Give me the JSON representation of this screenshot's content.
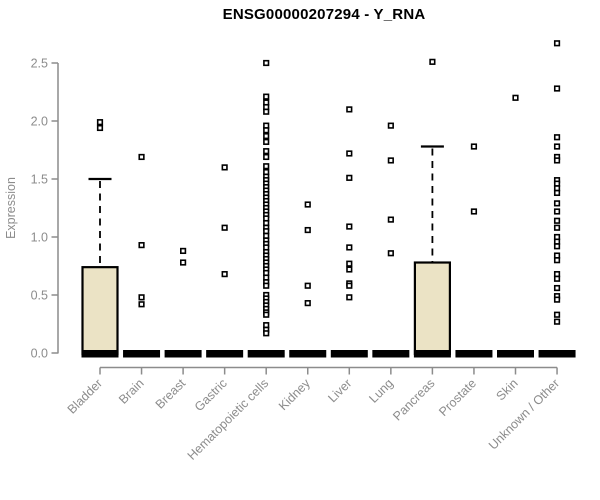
{
  "title": "ENSG00000207294 - Y_RNA",
  "colors": {
    "background": "#ffffff",
    "box_fill": "#ebe3c5",
    "box_stroke": "#000000",
    "point_stroke": "#000000",
    "point_fill": "#ffffff",
    "median_bar": "#000000",
    "axis": "#8c8c8c",
    "tick_label": "#8c8c8c",
    "title_color": "#000000"
  },
  "chart_data": {
    "type": "boxplot-scatter",
    "title": "ENSG00000207294 - Y_RNA",
    "ylabel": "Expression",
    "xlabel": "",
    "yticks": [
      "0.0",
      "0.5",
      "1.0",
      "1.5",
      "2.0",
      "2.5"
    ],
    "ytick_values": [
      0,
      0.5,
      1.0,
      1.5,
      2.0,
      2.5
    ],
    "ylim": [
      0,
      2.7
    ],
    "grid": "off",
    "legend": "none",
    "categories": [
      "Bladder",
      "Brain",
      "Breast",
      "Gastric",
      "Hematopoietic cells",
      "Kidney",
      "Liver",
      "Lung",
      "Pancreas",
      "Prostate",
      "Skin",
      "Unknown / Other"
    ],
    "series": [
      {
        "category": "Bladder",
        "box": {
          "median": 0,
          "q1": 0,
          "q3": 0.74,
          "whisker_low": 0,
          "whisker_high": 1.5
        },
        "points": [
          1.99,
          1.94
        ]
      },
      {
        "category": "Brain",
        "box": {
          "median": 0,
          "q1": 0,
          "q3": 0,
          "whisker_low": 0,
          "whisker_high": 0
        },
        "points": [
          1.69,
          0.93,
          0.48,
          0.42
        ]
      },
      {
        "category": "Breast",
        "box": {
          "median": 0,
          "q1": 0,
          "q3": 0,
          "whisker_low": 0,
          "whisker_high": 0
        },
        "points": [
          0.88,
          0.78
        ]
      },
      {
        "category": "Gastric",
        "box": {
          "median": 0,
          "q1": 0,
          "q3": 0,
          "whisker_low": 0,
          "whisker_high": 0
        },
        "points": [
          1.6,
          1.08,
          0.68
        ]
      },
      {
        "category": "Hematopoietic cells",
        "box": {
          "median": 0,
          "q1": 0,
          "q3": 0,
          "whisker_low": 0,
          "whisker_high": 0
        },
        "points": [
          2.5,
          2.21,
          2.16,
          2.12,
          2.08,
          1.96,
          1.92,
          1.87,
          1.82,
          1.74,
          1.69,
          1.61,
          1.56,
          1.52,
          1.49,
          1.46,
          1.43,
          1.4,
          1.37,
          1.34,
          1.31,
          1.28,
          1.25,
          1.22,
          1.19,
          1.16,
          1.12,
          1.08,
          1.05,
          1.01,
          0.97,
          0.94,
          0.91,
          0.87,
          0.84,
          0.81,
          0.78,
          0.75,
          0.72,
          0.69,
          0.65,
          0.61,
          0.58,
          0.5,
          0.47,
          0.44,
          0.41,
          0.38,
          0.35,
          0.33,
          0.24,
          0.2,
          0.17
        ]
      },
      {
        "category": "Kidney",
        "box": {
          "median": 0,
          "q1": 0,
          "q3": 0,
          "whisker_low": 0,
          "whisker_high": 0
        },
        "points": [
          1.28,
          1.06,
          0.58,
          0.43
        ]
      },
      {
        "category": "Liver",
        "box": {
          "median": 0,
          "q1": 0,
          "q3": 0,
          "whisker_low": 0,
          "whisker_high": 0
        },
        "points": [
          2.1,
          1.72,
          1.51,
          1.09,
          0.91,
          0.77,
          0.72,
          0.6,
          0.58,
          0.48
        ]
      },
      {
        "category": "Lung",
        "box": {
          "median": 0,
          "q1": 0,
          "q3": 0,
          "whisker_low": 0,
          "whisker_high": 0
        },
        "points": [
          1.96,
          1.66,
          1.15,
          0.86
        ]
      },
      {
        "category": "Pancreas",
        "box": {
          "median": 0,
          "q1": 0,
          "q3": 0.78,
          "whisker_low": 0,
          "whisker_high": 1.78
        },
        "points": [
          2.51
        ]
      },
      {
        "category": "Prostate",
        "box": {
          "median": 0,
          "q1": 0,
          "q3": 0,
          "whisker_low": 0,
          "whisker_high": 0
        },
        "points": [
          1.78,
          1.22
        ]
      },
      {
        "category": "Skin",
        "box": {
          "median": 0,
          "q1": 0,
          "q3": 0,
          "whisker_low": 0,
          "whisker_high": 0
        },
        "points": [
          2.2
        ]
      },
      {
        "category": "Unknown / Other",
        "box": {
          "median": 0,
          "q1": 0,
          "q3": 0,
          "whisker_low": 0,
          "whisker_high": 0
        },
        "points": [
          2.67,
          2.28,
          1.86,
          1.78,
          1.69,
          1.66,
          1.49,
          1.46,
          1.42,
          1.38,
          1.29,
          1.22,
          1.14,
          1.08,
          1.0,
          0.96,
          0.92,
          0.84,
          0.8,
          0.68,
          0.64,
          0.56,
          0.49,
          0.46,
          0.33,
          0.27
        ]
      }
    ]
  }
}
